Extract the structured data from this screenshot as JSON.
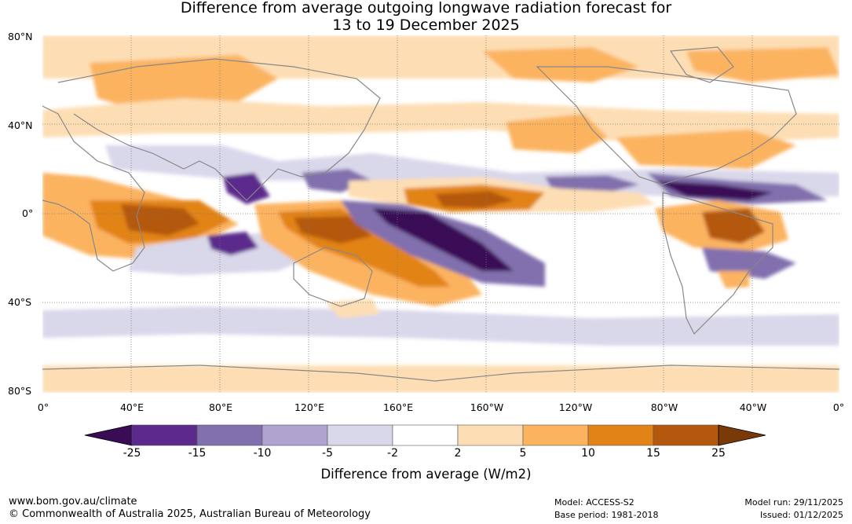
{
  "title": {
    "line1": "Difference from average outgoing longwave radiation forecast for",
    "line2": "13 to 19 December 2025"
  },
  "map": {
    "lat_labels": [
      "80°N",
      "40°N",
      "0°",
      "40°S",
      "80°S"
    ],
    "lon_labels": [
      "0°",
      "40°E",
      "80°E",
      "120°E",
      "160°E",
      "160°W",
      "120°W",
      "80°W",
      "40°W",
      "0°"
    ],
    "anomaly_regions": [
      {
        "category": "strong negative",
        "location": "central equatorial Pacific south of equator"
      },
      {
        "category": "strong negative",
        "location": "northern tropical Pacific near Central America"
      },
      {
        "category": "strong positive",
        "location": "equatorial Africa and western Indian Ocean"
      },
      {
        "category": "strong positive",
        "location": "north-central equatorial Pacific"
      },
      {
        "category": "strong positive",
        "location": "northern South America and equatorial Atlantic"
      }
    ]
  },
  "colorbar": {
    "ticks": [
      "-25",
      "-15",
      "-10",
      "-5",
      "-2",
      "2",
      "5",
      "10",
      "15",
      "25"
    ],
    "colors": [
      "#5b2a8c",
      "#8170ad",
      "#aea4cf",
      "#d9d7ea",
      "#ffffff",
      "#fddeb4",
      "#fbb360",
      "#e28318",
      "#b4580e"
    ],
    "low_extend_color": "#3a0c56",
    "high_extend_color": "#7a3a08",
    "title": "Difference from average (W/m2)"
  },
  "footer": {
    "url": "www.bom.gov.au/climate",
    "copyright": "© Commonwealth of Australia 2025, Australian Bureau of Meteorology",
    "model": "Model: ACCESS-S2",
    "base_period": "Base period: 1981-2018",
    "model_run": "Model run: 29/11/2025",
    "issued": "Issued: 01/12/2025"
  }
}
